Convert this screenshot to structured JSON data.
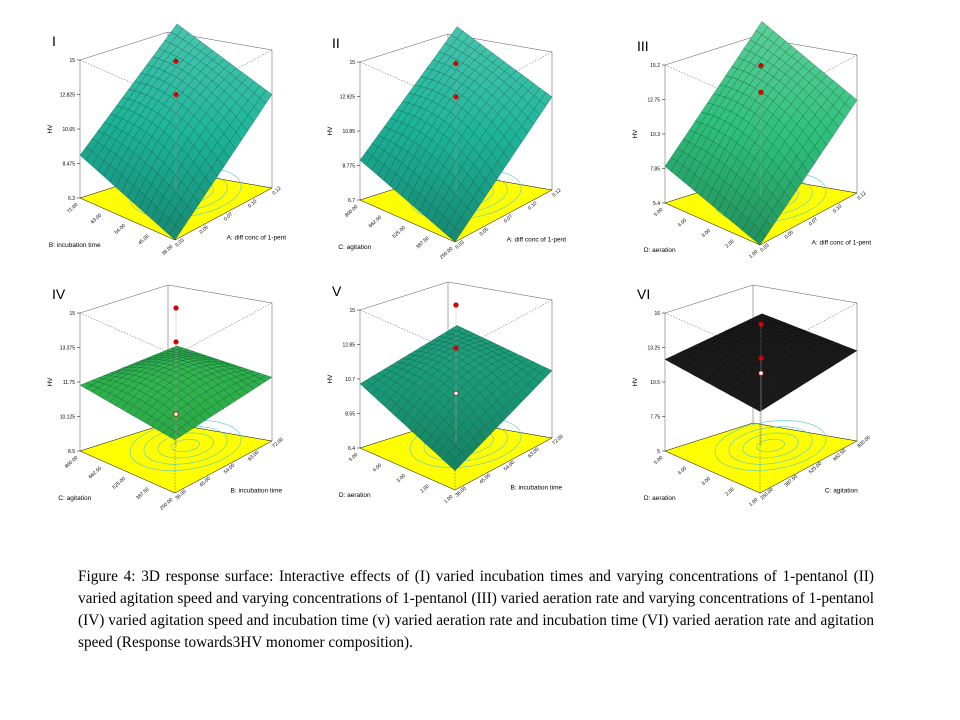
{
  "chart_data": [
    {
      "type": "surface3d",
      "panel_label": "I",
      "zlabel": "HV",
      "zticks": [
        "6.3",
        "8.475",
        "10.65",
        "12.825",
        "15"
      ],
      "xlabel": "A: diff conc of 1-pent",
      "xticks": [
        "0.03",
        "0.05",
        "0.07",
        "0.10",
        "0.12"
      ],
      "ylabel": "B: incubation time",
      "yticks": [
        "36.00",
        "45.00",
        "54.00",
        "63.00",
        "72.00"
      ],
      "surface_color": "#1db59a",
      "z_corners": {
        "x_low_y_low": 6.3,
        "x_high_y_low": 12.2,
        "x_low_y_high": 9.0,
        "x_high_y_high": 14.0
      },
      "design_points_z": [
        14.6,
        12.5
      ]
    },
    {
      "type": "surface3d",
      "panel_label": "II",
      "zlabel": "HV",
      "zticks": [
        "6.7",
        "8.775",
        "10.85",
        "12.925",
        "15"
      ],
      "xlabel": "A: diff conc of 1-pent",
      "xticks": [
        "0.03",
        "0.05",
        "0.07",
        "0.10",
        "0.12"
      ],
      "ylabel": "C: agitation",
      "yticks": [
        "250.00",
        "387.50",
        "525.00",
        "662.50",
        "800.00"
      ],
      "surface_color": "#1db59a",
      "z_corners": {
        "x_low_y_low": 6.7,
        "x_high_y_low": 12.3,
        "x_low_y_high": 9.1,
        "x_high_y_high": 14.0
      },
      "design_points_z": [
        14.6,
        12.6
      ]
    },
    {
      "type": "surface3d",
      "panel_label": "III",
      "zlabel": "HV",
      "zticks": [
        "5.4",
        "7.85",
        "10.3",
        "12.75",
        "15.2"
      ],
      "xlabel": "A: diff conc of 1-pent",
      "xticks": [
        "0.03",
        "0.05",
        "0.07",
        "0.10",
        "0.12"
      ],
      "ylabel": "D: aeration",
      "yticks": [
        "1.00",
        "2.00",
        "3.00",
        "4.00",
        "5.00"
      ],
      "surface_color": "#2ec07a",
      "z_corners": {
        "x_low_y_low": 5.4,
        "x_high_y_low": 12.0,
        "x_low_y_high": 8.0,
        "x_high_y_high": 14.6
      },
      "design_points_z": [
        14.8,
        12.9
      ]
    },
    {
      "type": "surface3d",
      "panel_label": "IV",
      "zlabel": "HV",
      "zticks": [
        "8.5",
        "10.125",
        "11.75",
        "13.375",
        "15"
      ],
      "xlabel": "B: incubation time",
      "xticks": [
        "36.00",
        "45.00",
        "54.00",
        "63.00",
        "72.00"
      ],
      "ylabel": "C: agitation",
      "yticks": [
        "250.00",
        "387.50",
        "525.00",
        "662.50",
        "800.00"
      ],
      "surface_color": "#2fb34a",
      "z_corners": {
        "x_low_y_low": 11.0,
        "x_high_y_low": 11.5,
        "x_low_y_high": 11.6,
        "x_high_y_high": 11.0
      },
      "design_points_z": [
        15.0,
        13.4,
        10.0
      ]
    },
    {
      "type": "surface3d",
      "panel_label": "V",
      "zlabel": "HV",
      "zticks": [
        "6.4",
        "8.55",
        "10.7",
        "12.85",
        "15"
      ],
      "xlabel": "B: incubation time",
      "xticks": [
        "36.00",
        "45.00",
        "54.00",
        "63.00",
        "72.00"
      ],
      "ylabel": "D: aeration",
      "yticks": [
        "1.00",
        "2.00",
        "3.00",
        "4.00",
        "5.00"
      ],
      "surface_color": "#1a9c78",
      "z_corners": {
        "x_low_y_low": 7.6,
        "x_high_y_low": 10.6,
        "x_low_y_high": 10.4,
        "x_high_y_high": 10.8
      },
      "design_points_z": [
        15.0,
        12.3,
        9.5
      ]
    },
    {
      "type": "surface3d",
      "panel_label": "VI",
      "zlabel": "HV",
      "zticks": [
        "5",
        "7.75",
        "10.5",
        "13.25",
        "16"
      ],
      "xlabel": "C: agitation",
      "xticks": [
        "250.00",
        "387.50",
        "525.00",
        "662.50",
        "800.00"
      ],
      "ylabel": "D: aeration",
      "yticks": [
        "1.00",
        "2.00",
        "3.00",
        "4.00",
        "5.00"
      ],
      "surface_color": "#222222",
      "z_corners": {
        "x_low_y_low": 11.5,
        "x_high_y_low": 12.2,
        "x_low_y_high": 12.3,
        "x_high_y_high": 11.8
      },
      "design_points_z": [
        14.7,
        12.0,
        10.8
      ]
    }
  ],
  "caption": "Figure 4: 3D response surface: Interactive effects of (I) varied incubation times and varying concentrations of 1-pentanol (II) varied agitation speed and varying concentrations of 1-pentanol (III) varied aeration rate and varying concentrations of 1-pentanol (IV) varied agitation speed and incubation time (v) varied aeration rate and incubation time (VI) varied aeration rate and agitation speed (Response towards3HV monomer composition).",
  "colors": {
    "floor": "#ffff00",
    "contour": "#55c8c8",
    "design_point": "#cc0000"
  }
}
